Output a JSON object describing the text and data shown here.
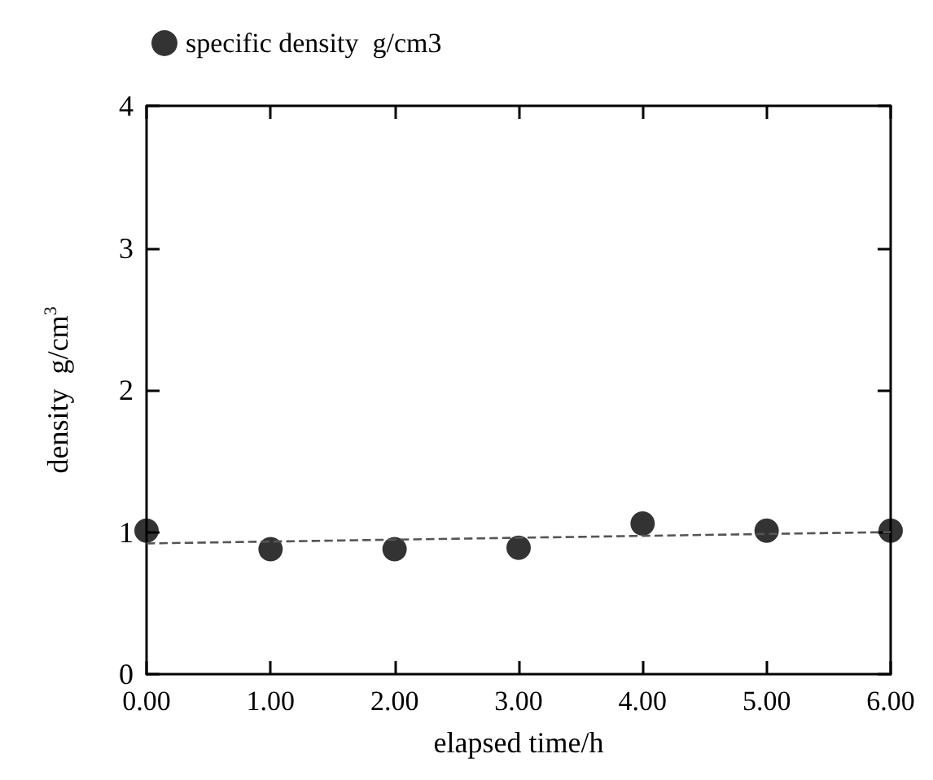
{
  "chart_data": {
    "type": "scatter",
    "xlabel": "elapsed time/h",
    "ylabel": "density  g/cm$^{3}$",
    "x": [
      0,
      1,
      2,
      3,
      4,
      5,
      6
    ],
    "series": [
      {
        "name": "specific density  g/cm3",
        "color": "#000000",
        "marker": "circle",
        "values": [
          1.01,
          0.88,
          0.88,
          0.89,
          1.06,
          1.01,
          1.01
        ]
      },
      {
        "type": "line",
        "color": "#555555",
        "line_style": "dashed",
        "marker": "none",
        "x": [
          0,
          6
        ],
        "values": [
          0.92,
          1.0
        ]
      }
    ],
    "xlim": [
      0,
      6
    ],
    "xticks": [
      {
        "value": 0,
        "label": "0.00"
      },
      {
        "value": 1,
        "label": "1.00"
      },
      {
        "value": 2,
        "label": "2.00"
      },
      {
        "value": 3,
        "label": "3.00"
      },
      {
        "value": 4,
        "label": "4.00"
      },
      {
        "value": 5,
        "label": "5.00"
      },
      {
        "value": 6,
        "label": "6.00"
      }
    ],
    "ylim": [
      0,
      4
    ],
    "yticks": [
      0,
      1,
      2,
      3,
      4
    ],
    "grid": false,
    "legend": "top left"
  }
}
